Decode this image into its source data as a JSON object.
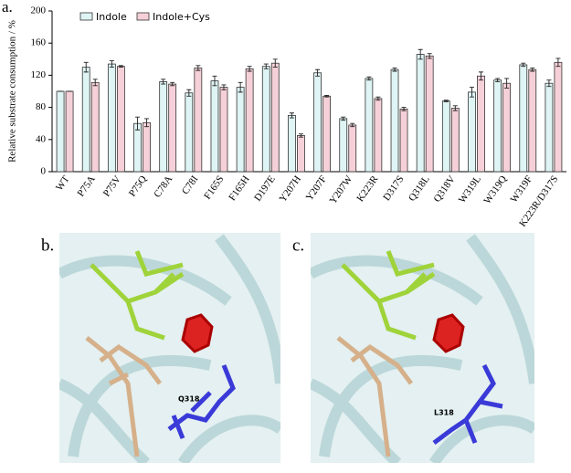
{
  "chart_data": {
    "type": "bar",
    "panel_label": "a.",
    "ylabel": "Relative substrate consumption / %",
    "categories": [
      "WT",
      "P75A",
      "P75V",
      "P75Q",
      "C78A",
      "C78I",
      "F165S",
      "F165H",
      "D197E",
      "Y207H",
      "Y207F",
      "Y207W",
      "K223R",
      "D317S",
      "Q318L",
      "Q318V",
      "W319L",
      "W319Q",
      "W319F",
      "K223R/D317S"
    ],
    "series": [
      {
        "name": "Indole",
        "color": "#dff4f4",
        "values": [
          100,
          130,
          134,
          60,
          112,
          98,
          113,
          105,
          131,
          70,
          123,
          66,
          116,
          127,
          146,
          88,
          99,
          114,
          133,
          110
        ],
        "errors": [
          0,
          6,
          4,
          8,
          3,
          4,
          6,
          6,
          3,
          3,
          4,
          2,
          2,
          2,
          6,
          1,
          6,
          2,
          2,
          4
        ]
      },
      {
        "name": "Indole+Cys",
        "color": "#f6d0d8",
        "values": [
          100,
          111,
          131,
          61,
          109,
          129,
          105,
          128,
          135,
          45,
          94,
          58,
          91,
          78,
          144,
          79,
          119,
          110,
          127,
          136
        ],
        "errors": [
          0,
          4,
          1,
          5,
          2,
          3,
          3,
          3,
          5,
          2,
          1,
          2,
          2,
          2,
          3,
          3,
          5,
          6,
          2,
          5
        ]
      }
    ],
    "ylim": [
      0,
      200
    ],
    "yticks": [
      0,
      40,
      80,
      120,
      160,
      200
    ],
    "legend": "top-left"
  },
  "panels": [
    {
      "label": "b.",
      "residue": "Q318"
    },
    {
      "label": "c.",
      "residue": "L318"
    }
  ]
}
